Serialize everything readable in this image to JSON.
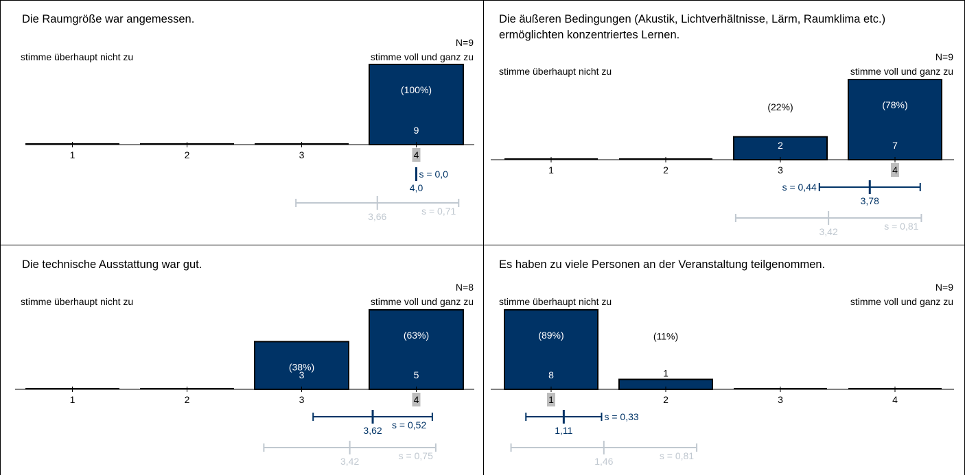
{
  "colors": {
    "bar": "#003366",
    "bar_stroke": "#000000",
    "mean_current": "#003366",
    "mean_previous": "#c0c8d0",
    "median_badge": "#bdbdbd",
    "text": "#000000",
    "bar_text": "#ffffff"
  },
  "chart_data": [
    {
      "type": "bar",
      "title": "Die Raumgröße war angemessen.",
      "n_label": "N=9",
      "low_label": "stimme überhaupt nicht zu",
      "high_label": "stimme voll und ganz zu",
      "categories": [
        "1",
        "2",
        "3",
        "4"
      ],
      "values": [
        0,
        0,
        0,
        9
      ],
      "percent_labels": [
        "",
        "",
        "",
        "(100%)"
      ],
      "count_labels": [
        "",
        "",
        "",
        "9"
      ],
      "median": 4,
      "mean": 4.0,
      "mean_label": "4,0",
      "sd_label": "s = 0,0",
      "sd": 0.0,
      "prev_mean": 3.66,
      "prev_mean_label": "3,66",
      "prev_sd": 0.71,
      "prev_sd_label": "s = 0,71"
    },
    {
      "type": "bar",
      "title": "Die äußeren Bedingungen (Akustik, Lichtverhältnisse, Lärm, Raumklima etc.) ermöglichten konzentriertes Lernen.",
      "n_label": "N=9",
      "low_label": "stimme überhaupt nicht zu",
      "high_label": "stimme voll und ganz zu",
      "categories": [
        "1",
        "2",
        "3",
        "4"
      ],
      "values": [
        0,
        0,
        2,
        7
      ],
      "percent_labels": [
        "",
        "",
        "(22%)",
        "(78%)"
      ],
      "count_labels": [
        "",
        "",
        "2",
        "7"
      ],
      "median": 4,
      "mean": 3.78,
      "mean_label": "3,78",
      "sd_label": "s = 0,44",
      "sd": 0.44,
      "prev_mean": 3.42,
      "prev_mean_label": "3,42",
      "prev_sd": 0.81,
      "prev_sd_label": "s = 0,81"
    },
    {
      "type": "bar",
      "title": "Die technische Ausstattung war gut.",
      "n_label": "N=8",
      "low_label": "stimme überhaupt nicht zu",
      "high_label": "stimme voll und ganz zu",
      "categories": [
        "1",
        "2",
        "3",
        "4"
      ],
      "values": [
        0,
        0,
        3,
        5
      ],
      "percent_labels": [
        "",
        "",
        "(38%)",
        "(63%)"
      ],
      "count_labels": [
        "",
        "",
        "3",
        "5"
      ],
      "median": 4,
      "mean": 3.62,
      "mean_label": "3,62",
      "sd_label": "s = 0,52",
      "sd": 0.52,
      "prev_mean": 3.42,
      "prev_mean_label": "3,42",
      "prev_sd": 0.75,
      "prev_sd_label": "s = 0,75"
    },
    {
      "type": "bar",
      "title": "Es haben zu viele Personen an der Veranstaltung teilgenommen.",
      "n_label": "N=9",
      "low_label": "stimme überhaupt nicht zu",
      "high_label": "stimme voll und ganz zu",
      "categories": [
        "1",
        "2",
        "3",
        "4"
      ],
      "values": [
        8,
        1,
        0,
        0
      ],
      "percent_labels": [
        "(89%)",
        "(11%)",
        "",
        ""
      ],
      "count_labels": [
        "8",
        "1",
        "",
        ""
      ],
      "median": 1,
      "mean": 1.11,
      "mean_label": "1,11",
      "sd_label": "s = 0,33",
      "sd": 0.33,
      "prev_mean": 1.46,
      "prev_mean_label": "1,46",
      "prev_sd": 0.81,
      "prev_sd_label": "s = 0,81"
    }
  ]
}
